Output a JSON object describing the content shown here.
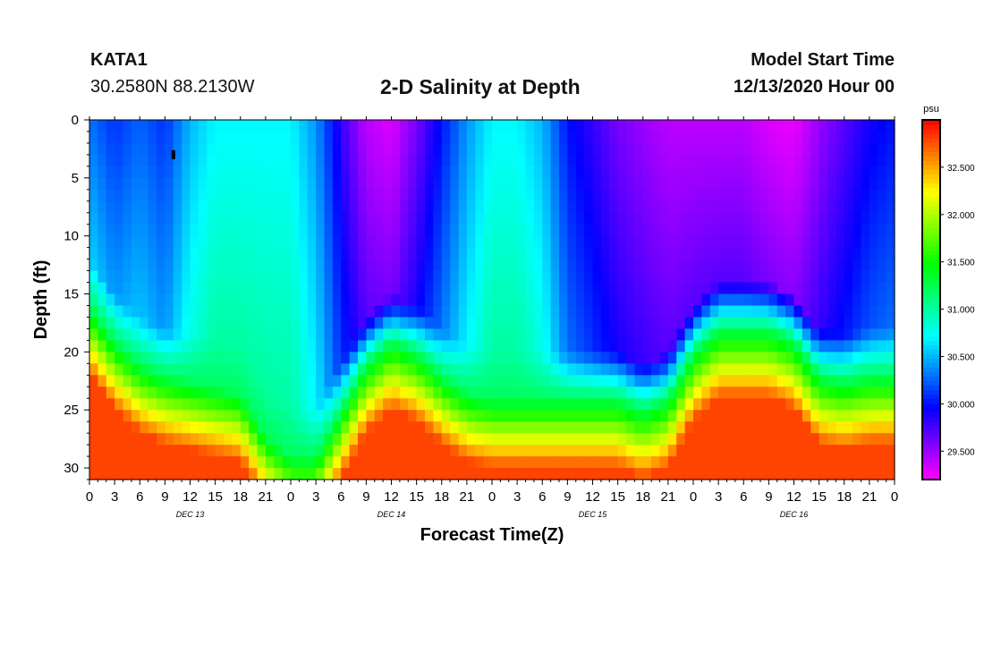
{
  "header": {
    "station": "KATA1",
    "coords": "30.2580N 88.2130W",
    "title": "2-D Salinity at Depth",
    "start_label": "Model Start Time",
    "start_time": "12/13/2020 Hour 00"
  },
  "chart_data": {
    "type": "heatmap",
    "title": "2-D Salinity at Depth",
    "xlabel": "Forecast Time(Z)",
    "ylabel": "Depth (ft)",
    "x_range_hours": [
      0,
      96
    ],
    "ylim": [
      0,
      31
    ],
    "y_ticks": [
      0,
      5,
      10,
      15,
      20,
      25,
      30
    ],
    "x_tick_labels": [
      "0",
      "3",
      "6",
      "9",
      "12",
      "15",
      "18",
      "21",
      "0",
      "3",
      "6",
      "9",
      "12",
      "15",
      "18",
      "21",
      "0",
      "3",
      "6",
      "9",
      "12",
      "15",
      "18",
      "21",
      "0",
      "3",
      "6",
      "9",
      "12",
      "15",
      "18",
      "21",
      "0"
    ],
    "day_labels": [
      {
        "label": "DEC 13",
        "hour": 12
      },
      {
        "label": "DEC 14",
        "hour": 36
      },
      {
        "label": "DEC 15",
        "hour": 60
      },
      {
        "label": "DEC 16",
        "hour": 84
      }
    ],
    "colorbar": {
      "unit": "psu",
      "min": 29.2,
      "max": 33.0,
      "tick_values": [
        29.5,
        30.0,
        30.5,
        31.0,
        31.5,
        32.0,
        32.5
      ],
      "tick_labels": [
        "29.500",
        "30.000",
        "30.500",
        "31.000",
        "31.500",
        "32.000",
        "32.500"
      ]
    },
    "surface_salinity_psu": {
      "hours": [
        0,
        3,
        6,
        9,
        12,
        15,
        18,
        21,
        24,
        27,
        30,
        33,
        36,
        39,
        42,
        45,
        48,
        51,
        54,
        57,
        60,
        63,
        66,
        69,
        72,
        75,
        78,
        81,
        84,
        87,
        90,
        93,
        96
      ],
      "values": [
        30.3,
        30.1,
        30.25,
        30.1,
        30.5,
        30.7,
        30.7,
        30.7,
        30.7,
        30.4,
        29.8,
        29.4,
        29.3,
        29.6,
        30.0,
        30.4,
        30.7,
        30.7,
        30.5,
        30.0,
        29.8,
        29.6,
        29.5,
        29.4,
        29.4,
        29.4,
        29.4,
        29.3,
        29.25,
        29.5,
        29.7,
        29.9,
        30.0
      ]
    },
    "bottom_layer_top_depth_ft": {
      "hours": [
        0,
        3,
        6,
        9,
        12,
        15,
        18,
        21,
        24,
        27,
        30,
        33,
        36,
        39,
        42,
        45,
        48,
        51,
        54,
        57,
        60,
        63,
        66,
        69,
        72,
        75,
        78,
        81,
        84,
        87,
        90,
        93,
        96
      ],
      "values": [
        16,
        19,
        21,
        22,
        22.5,
        23,
        23.5,
        27,
        29,
        29,
        25,
        21,
        19,
        20,
        22,
        23.5,
        24,
        24,
        24,
        24,
        24,
        24,
        25,
        24,
        20,
        18,
        18,
        18,
        19,
        22,
        22.5,
        22,
        22
      ]
    },
    "marker": {
      "hour": 10,
      "depth_ft": 3
    }
  }
}
